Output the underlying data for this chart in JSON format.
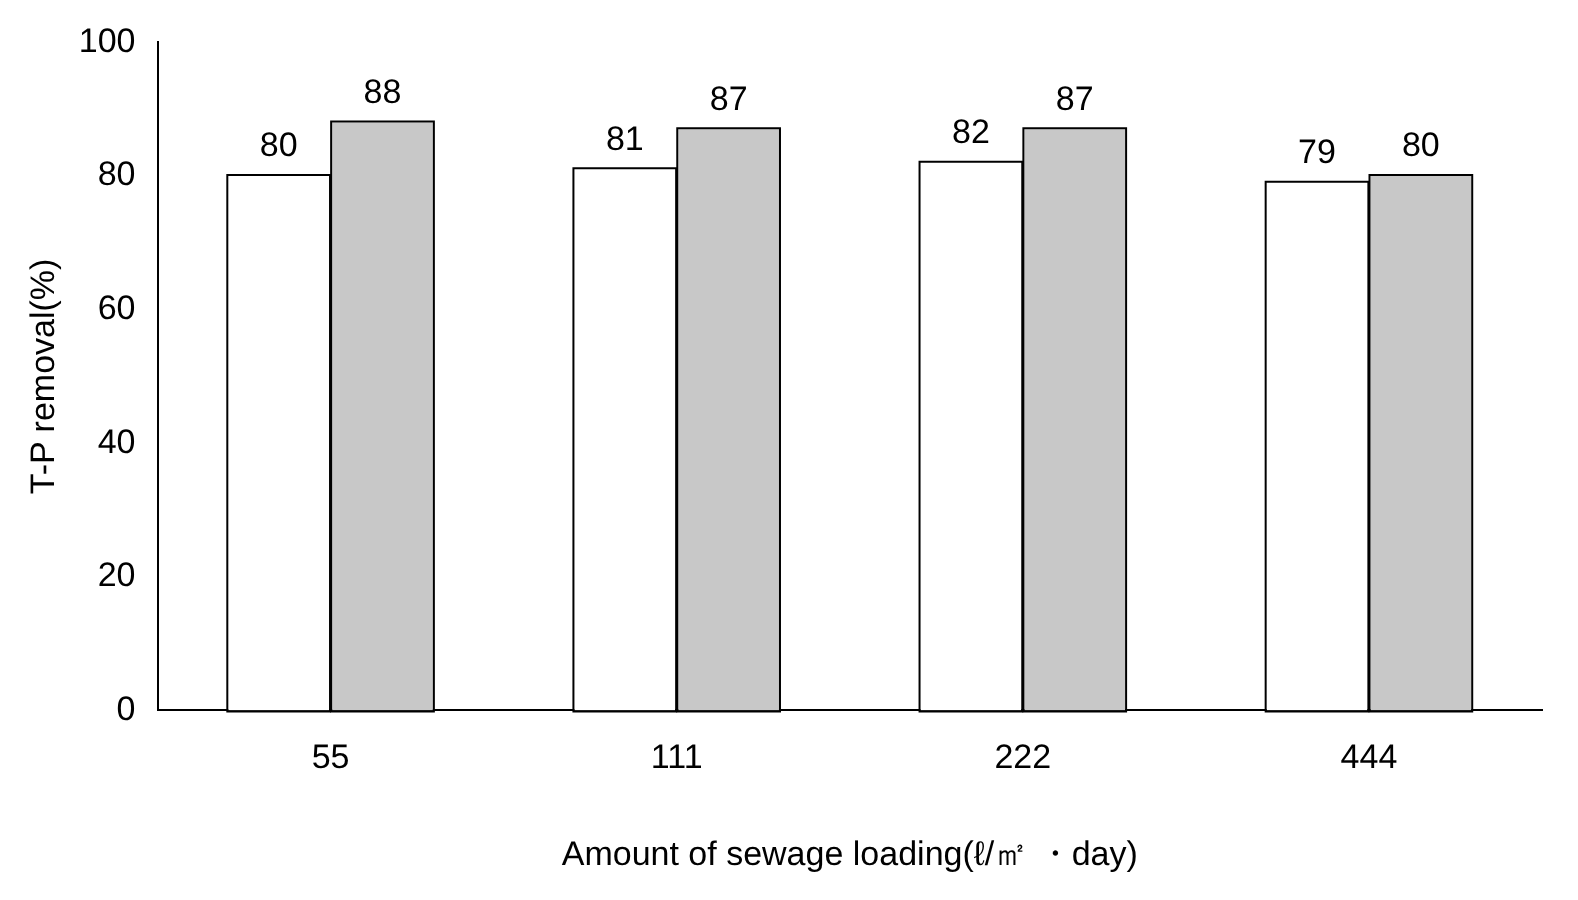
{
  "chart_data": {
    "type": "bar",
    "xlabel": "Amount of sewage loading(ℓ/㎡ ・day)",
    "ylabel": "T-P removal(%)",
    "categories": [
      "55",
      "111",
      "222",
      "444"
    ],
    "series": [
      {
        "color": "#ffffff",
        "values": [
          80,
          81,
          82,
          79
        ]
      },
      {
        "color": "#c8c8c8",
        "values": [
          88,
          87,
          87,
          80
        ]
      }
    ],
    "ylim": [
      0,
      100
    ],
    "yticks": [
      0,
      20,
      40,
      60,
      80,
      100
    ],
    "data_labels": true,
    "grid": false,
    "legend": false
  }
}
